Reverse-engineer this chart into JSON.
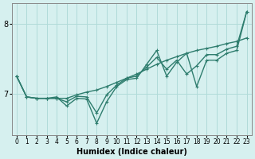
{
  "xlabel": "Humidex (Indice chaleur)",
  "ylabel": "",
  "background_color": "#d6f0ef",
  "grid_color": "#b0dbd9",
  "line_color": "#2e7d6e",
  "x_data": [
    0,
    1,
    2,
    3,
    4,
    5,
    6,
    7,
    8,
    9,
    10,
    11,
    12,
    13,
    14,
    15,
    16,
    17,
    18,
    19,
    20,
    21,
    22,
    23
  ],
  "y_line1": [
    7.25,
    6.95,
    6.93,
    6.93,
    6.95,
    6.82,
    6.93,
    6.92,
    6.57,
    6.88,
    7.1,
    7.2,
    7.22,
    7.42,
    7.62,
    7.25,
    7.45,
    7.58,
    7.1,
    7.48,
    7.48,
    7.58,
    7.62,
    8.18
  ],
  "y_line2": [
    7.25,
    6.95,
    6.93,
    6.93,
    6.93,
    6.93,
    6.98,
    7.02,
    7.05,
    7.1,
    7.16,
    7.22,
    7.28,
    7.35,
    7.42,
    7.48,
    7.53,
    7.58,
    7.62,
    7.65,
    7.68,
    7.72,
    7.75,
    7.8
  ],
  "y_line3": [
    7.25,
    6.95,
    6.93,
    6.93,
    6.93,
    6.88,
    6.96,
    6.95,
    6.72,
    6.98,
    7.12,
    7.22,
    7.25,
    7.38,
    7.52,
    7.35,
    7.48,
    7.28,
    7.4,
    7.56,
    7.56,
    7.64,
    7.68,
    8.18
  ],
  "ylim": [
    6.4,
    8.3
  ],
  "yticks": [
    7,
    8
  ],
  "xlim": [
    -0.5,
    23.5
  ],
  "marker_size": 3.0,
  "line_width": 1.0
}
